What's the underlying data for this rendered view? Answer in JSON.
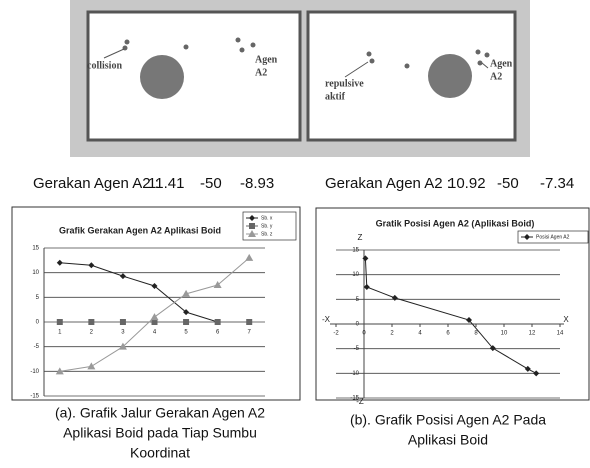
{
  "panels": [
    {
      "labels": [
        "collision",
        "Agen",
        "A2"
      ],
      "status": {
        "label": "Gerakan Agen A2 :",
        "values": [
          11.41,
          -50,
          -8.93
        ]
      }
    },
    {
      "labels": [
        "repulsive",
        "aktif",
        "Agen",
        "A2"
      ],
      "status": {
        "label": "Gerakan Agen A2 :",
        "values": [
          10.92,
          -50,
          -7.34
        ]
      }
    }
  ],
  "chart_data": [
    {
      "type": "line",
      "title": "Grafik Gerakan Agen A2 Aplikasi Boid",
      "categories": [
        "1",
        "2",
        "3",
        "4",
        "5",
        "6",
        "7"
      ],
      "series": [
        {
          "name": "Sb. x",
          "color": "#222222",
          "marker": "diamond",
          "values": [
            12,
            11.5,
            9.3,
            7.3,
            2,
            0,
            0
          ]
        },
        {
          "name": "Sb. y",
          "color": "#666666",
          "marker": "square",
          "values": [
            0,
            0,
            0,
            0,
            0,
            0,
            0
          ]
        },
        {
          "name": "Sb. z",
          "color": "#999999",
          "marker": "triangle",
          "values": [
            -10,
            -9,
            -5,
            1,
            5.7,
            7.5,
            13
          ]
        }
      ],
      "ylim": [
        -15,
        15
      ],
      "yticks": [
        -15,
        -10,
        -5,
        0,
        5,
        10,
        15
      ],
      "grid": true,
      "legend": "top-right"
    },
    {
      "type": "line",
      "title": "Gratik Posisi Agen A2 (Aplikasi Boid)",
      "x": [
        0.1,
        0.2,
        2.2,
        7.5,
        9.2,
        11.7,
        12.3
      ],
      "series": [
        {
          "name": "Posisi Agen A2",
          "color": "#222222",
          "marker": "diamond",
          "values": [
            13.3,
            7.5,
            5.3,
            0.8,
            -4.9,
            -9.1,
            -10
          ]
        }
      ],
      "axis_labels": {
        "y_pos": "Z",
        "y_neg": "-Z",
        "x_pos": "X",
        "x_neg": "-X"
      },
      "xlim": [
        -2,
        14
      ],
      "xticks": [
        -2,
        0,
        2,
        4,
        6,
        8,
        10,
        12,
        14
      ],
      "ylim": [
        -15,
        15
      ],
      "yticks": [
        -15,
        -10,
        -5,
        0,
        5,
        10,
        15
      ],
      "grid": true,
      "legend": "top-right"
    }
  ],
  "captions": [
    [
      "(a). Grafik Jalur Gerakan Agen A2",
      "Aplikasi Boid pada Tiap Sumbu",
      "Koordinat"
    ],
    [
      "(b). Grafik Posisi Agen A2 Pada",
      "Aplikasi Boid"
    ]
  ]
}
